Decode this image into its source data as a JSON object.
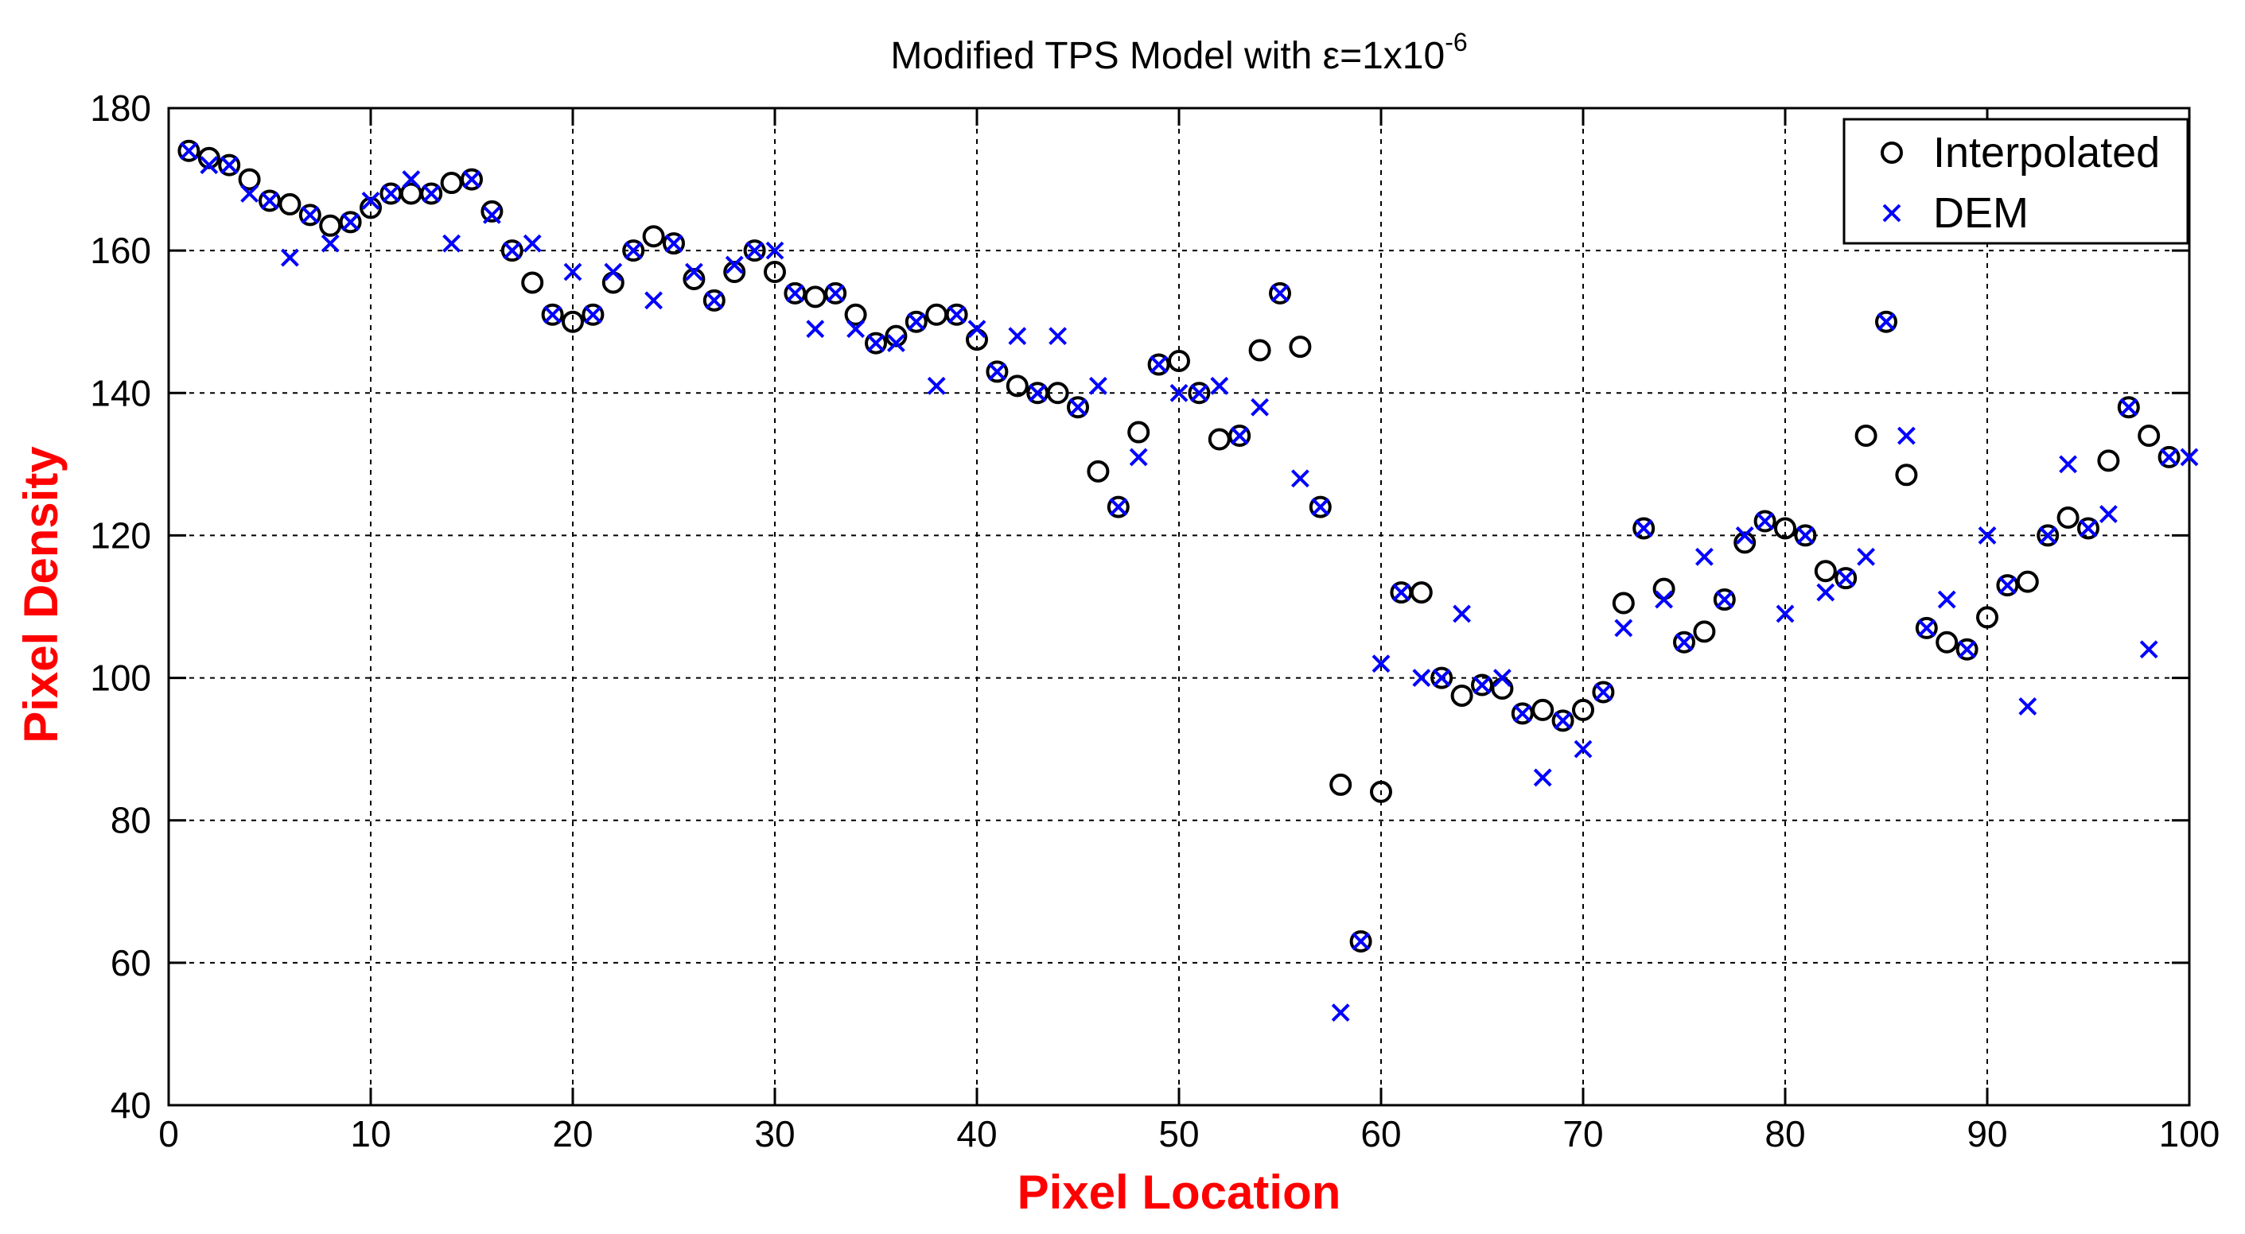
{
  "chart_data": {
    "type": "scatter",
    "title": {
      "main": "Modified TPS Model with ε=1x10",
      "superscript": "-6"
    },
    "xlabel": "Pixel Location",
    "ylabel": "Pixel Density",
    "xlim": [
      0,
      100
    ],
    "ylim": [
      40,
      180
    ],
    "xticks": [
      "0",
      "10",
      "20",
      "30",
      "40",
      "50",
      "60",
      "70",
      "80",
      "90",
      "100"
    ],
    "yticks": [
      "40",
      "60",
      "80",
      "100",
      "120",
      "140",
      "160",
      "180"
    ],
    "grid": true,
    "legend_position": "top-right",
    "series": [
      {
        "name": "Interpolated",
        "marker": "circle",
        "color": "#000000",
        "x": [
          1,
          2,
          3,
          4,
          5,
          6,
          7,
          8,
          9,
          10,
          11,
          12,
          13,
          14,
          15,
          16,
          17,
          18,
          19,
          20,
          21,
          22,
          23,
          24,
          25,
          26,
          27,
          28,
          29,
          30,
          31,
          32,
          33,
          34,
          35,
          36,
          37,
          38,
          39,
          40,
          41,
          42,
          43,
          44,
          45,
          46,
          47,
          48,
          49,
          50,
          51,
          52,
          53,
          54,
          55,
          56,
          57,
          58,
          59,
          60,
          61,
          62,
          63,
          64,
          65,
          66,
          67,
          68,
          69,
          70,
          71,
          72,
          73,
          74,
          75,
          76,
          77,
          78,
          79,
          80,
          81,
          82,
          83,
          84,
          85,
          86,
          87,
          88,
          89,
          90,
          91,
          92,
          93,
          94,
          95,
          96,
          97,
          98,
          99
        ],
        "y": [
          174,
          173,
          172,
          170,
          167,
          166.5,
          165,
          163.5,
          164,
          166,
          168,
          168,
          168,
          169.5,
          170,
          165.5,
          160,
          155.5,
          151,
          150,
          151,
          155.5,
          160,
          162,
          161,
          156,
          153,
          157,
          160,
          157,
          154,
          153.5,
          154,
          151,
          147,
          148,
          150,
          151,
          151,
          147.5,
          143,
          141,
          140,
          140,
          138,
          129,
          124,
          134.5,
          144,
          144.5,
          140,
          133.5,
          134,
          146,
          154,
          146.5,
          124,
          85,
          63,
          84,
          112,
          112,
          100,
          97.5,
          99,
          98.5,
          95,
          95.5,
          94,
          95.5,
          98,
          110.5,
          121,
          112.5,
          105,
          106.5,
          111,
          119,
          122,
          121,
          120,
          115,
          114,
          134,
          150,
          128.5,
          107,
          105,
          104,
          108.5,
          113,
          113.5,
          120,
          122.5,
          121,
          130.5,
          138,
          134,
          131
        ]
      },
      {
        "name": "DEM",
        "marker": "x",
        "color": "#0000ff",
        "x": [
          1,
          2,
          3,
          4,
          5,
          6,
          7,
          8,
          9,
          10,
          11,
          12,
          13,
          14,
          15,
          16,
          17,
          18,
          19,
          20,
          21,
          22,
          23,
          24,
          25,
          26,
          27,
          28,
          29,
          30,
          31,
          32,
          33,
          34,
          35,
          36,
          37,
          38,
          39,
          40,
          41,
          42,
          43,
          44,
          45,
          46,
          47,
          48,
          49,
          50,
          51,
          52,
          53,
          54,
          55,
          56,
          57,
          58,
          59,
          60,
          61,
          62,
          63,
          64,
          65,
          66,
          67,
          68,
          69,
          70,
          71,
          72,
          73,
          74,
          75,
          76,
          77,
          78,
          79,
          80,
          81,
          82,
          83,
          84,
          85,
          86,
          87,
          88,
          89,
          90,
          91,
          92,
          93,
          94,
          95,
          96,
          97,
          98,
          99,
          100
        ],
        "y": [
          174,
          172,
          172,
          168,
          167,
          159,
          165,
          161,
          164,
          167,
          168,
          170,
          168,
          161,
          170,
          165,
          160,
          161,
          151,
          157,
          151,
          157,
          160,
          153,
          161,
          157,
          153,
          158,
          160,
          160,
          154,
          149,
          154,
          149,
          147,
          147,
          150,
          141,
          151,
          149,
          143,
          148,
          140,
          148,
          138,
          141,
          124,
          131,
          144,
          140,
          140,
          141,
          134,
          138,
          154,
          128,
          124,
          53,
          63,
          102,
          112,
          100,
          100,
          109,
          99,
          100,
          95,
          86,
          94,
          90,
          98,
          107,
          121,
          111,
          105,
          117,
          111,
          120,
          122,
          109,
          120,
          112,
          114,
          117,
          150,
          134,
          107,
          111,
          104,
          120,
          113,
          96,
          120,
          130,
          121,
          123,
          138,
          104,
          131,
          131
        ]
      }
    ]
  }
}
